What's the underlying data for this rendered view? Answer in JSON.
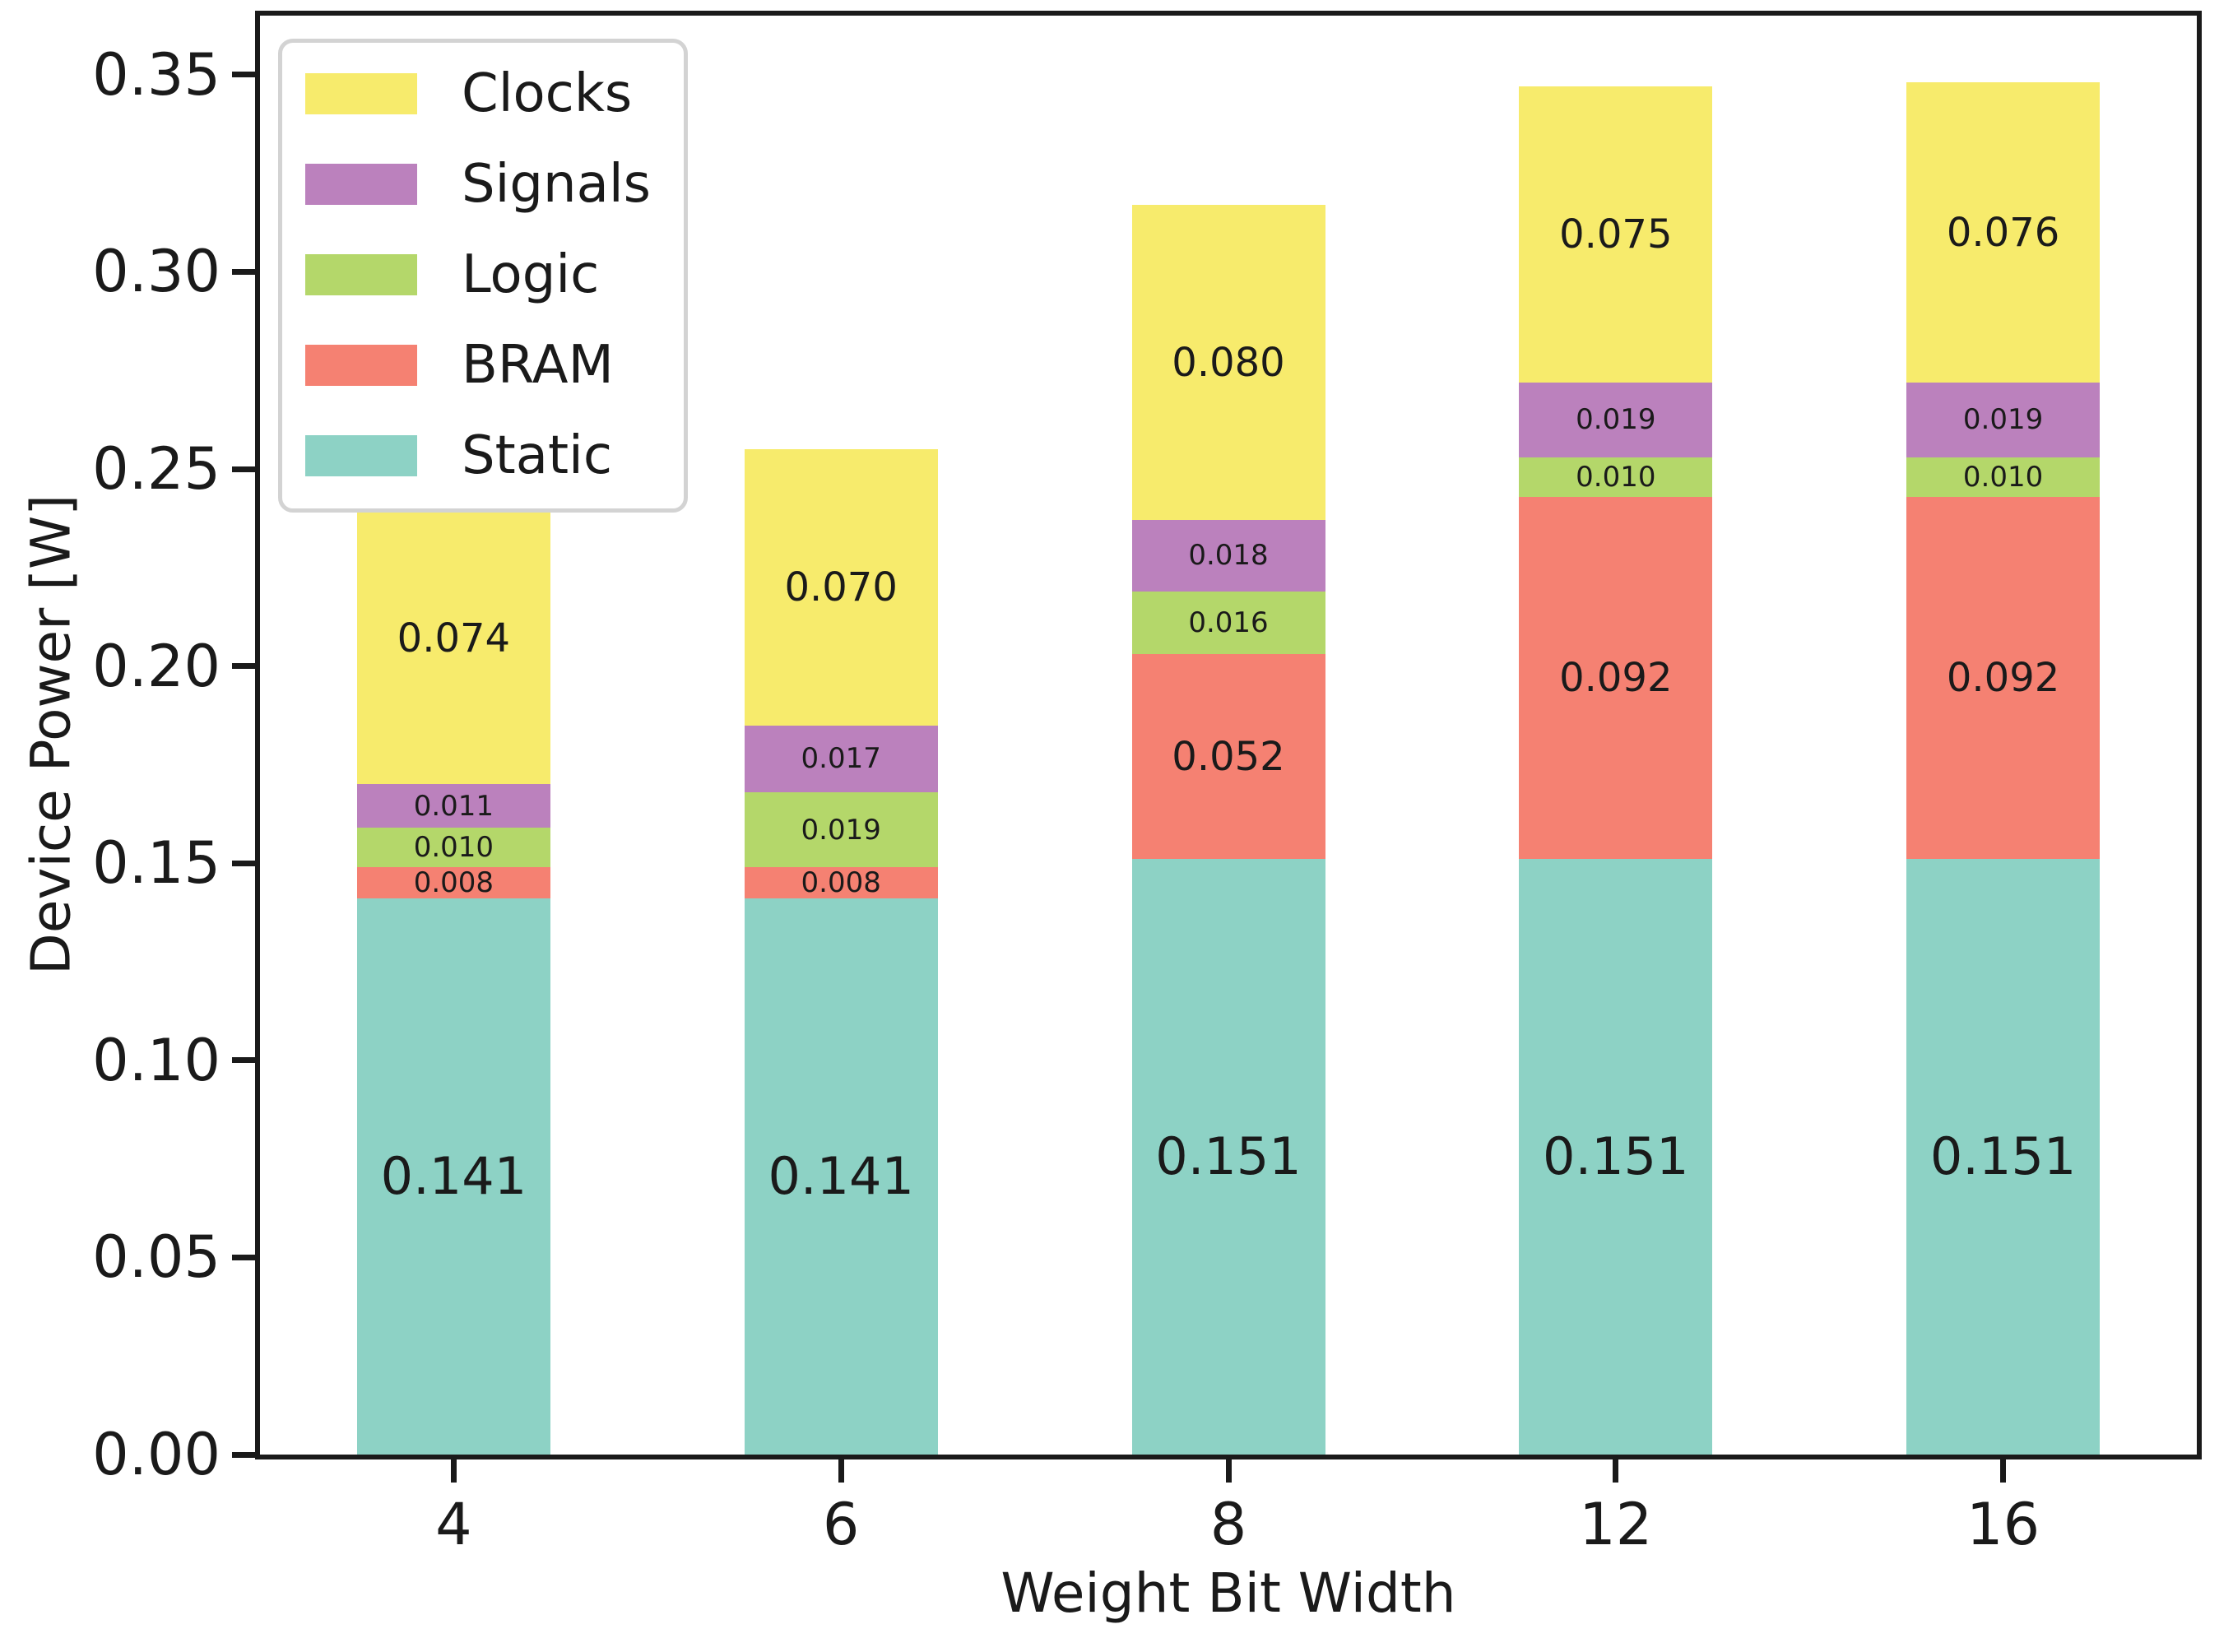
{
  "chart_data": {
    "type": "bar",
    "stacked": true,
    "title": "",
    "xlabel": "Weight Bit Width",
    "ylabel": "Device Power [W]",
    "categories": [
      "4",
      "6",
      "8",
      "12",
      "16"
    ],
    "series": [
      {
        "name": "Static",
        "color": "#8DD2C5",
        "values": [
          0.141,
          0.141,
          0.151,
          0.151,
          0.151
        ],
        "labels": [
          "0.141",
          "0.141",
          "0.151",
          "0.151",
          "0.151"
        ]
      },
      {
        "name": "BRAM",
        "color": "#F58172",
        "values": [
          0.008,
          0.008,
          0.052,
          0.092,
          0.092
        ],
        "labels": [
          "0.008",
          "0.008",
          "0.052",
          "0.092",
          "0.092"
        ]
      },
      {
        "name": "Logic",
        "color": "#B4D76A",
        "values": [
          0.01,
          0.019,
          0.016,
          0.01,
          0.01
        ],
        "labels": [
          "0.010",
          "0.019",
          "0.016",
          "0.010",
          "0.010"
        ]
      },
      {
        "name": "Signals",
        "color": "#BB81BD",
        "values": [
          0.011,
          0.017,
          0.018,
          0.019,
          0.019
        ],
        "labels": [
          "0.011",
          "0.017",
          "0.018",
          "0.019",
          "0.019"
        ]
      },
      {
        "name": "Clocks",
        "color": "#F7EB6C",
        "values": [
          0.074,
          0.07,
          0.08,
          0.075,
          0.076
        ],
        "labels": [
          "0.074",
          "0.070",
          "0.080",
          "0.075",
          "0.076"
        ]
      }
    ],
    "totals": [
      0.244,
      0.255,
      0.317,
      0.347,
      0.348
    ],
    "legend_order": [
      "Clocks",
      "Signals",
      "Logic",
      "BRAM",
      "Static"
    ],
    "legend_position": "upper left",
    "ylim": [
      0,
      0.365
    ],
    "yticks": [
      "0.00",
      "0.05",
      "0.10",
      "0.15",
      "0.20",
      "0.25",
      "0.30",
      "0.35"
    ],
    "grid": false,
    "axis_color": "#1a1a1a",
    "legend_border_color": "#d3d3d3"
  }
}
